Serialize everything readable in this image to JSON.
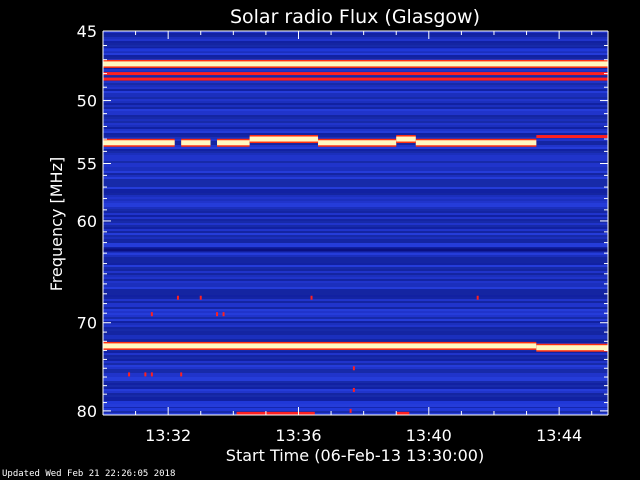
{
  "chart_data": {
    "type": "heatmap",
    "title": "Solar radio Flux (Glasgow)",
    "xlabel": "Start Time (06-Feb-13 13:30:00)",
    "ylabel": "Frequency [MHz]",
    "x_unit": "minutes after 13:30:00",
    "xlim": [
      0,
      15.5
    ],
    "ylim": [
      45,
      80.5
    ],
    "y_scale": "log",
    "x_ticks": [
      {
        "value": 2,
        "label": "13:32"
      },
      {
        "value": 6,
        "label": "13:36"
      },
      {
        "value": 10,
        "label": "13:40"
      },
      {
        "value": 14,
        "label": "13:44"
      }
    ],
    "y_ticks": [
      {
        "value": 45,
        "label": "45"
      },
      {
        "value": 50,
        "label": "50"
      },
      {
        "value": 55,
        "label": "55"
      },
      {
        "value": 60,
        "label": "60"
      },
      {
        "value": 70,
        "label": "70"
      },
      {
        "value": 80,
        "label": "80"
      }
    ],
    "background_color": "#1a2ab0",
    "colors": {
      "low": "#0a1080",
      "mid": "#2038d8",
      "high": "#ff2020",
      "peak": "#fff8c0"
    },
    "bands": [
      {
        "freq": 46.3,
        "intensity": "mid",
        "segments": [
          [
            0,
            15.5
          ]
        ]
      },
      {
        "freq": 47.3,
        "intensity": "peak",
        "segments": [
          [
            0,
            15.5
          ]
        ]
      },
      {
        "freq": 48.0,
        "intensity": "high",
        "segments": [
          [
            0,
            15.5
          ]
        ]
      },
      {
        "freq": 48.4,
        "intensity": "high",
        "segments": [
          [
            0,
            15.5
          ]
        ]
      },
      {
        "freq": 53.3,
        "intensity": "peak",
        "segments": [
          [
            0,
            2.2
          ],
          [
            2.4,
            3.3
          ],
          [
            3.5,
            4.5
          ],
          [
            6.6,
            9.0
          ],
          [
            9.6,
            13.3
          ]
        ]
      },
      {
        "freq": 53.0,
        "intensity": "peak",
        "segments": [
          [
            4.5,
            6.6
          ],
          [
            9.0,
            9.6
          ]
        ]
      },
      {
        "freq": 52.8,
        "intensity": "high",
        "segments": [
          [
            13.3,
            15.5
          ]
        ]
      },
      {
        "freq": 62.7,
        "intensity": "low",
        "segments": [
          [
            0,
            15.5
          ]
        ]
      },
      {
        "freq": 72.5,
        "intensity": "peak",
        "segments": [
          [
            0,
            13.3
          ]
        ]
      },
      {
        "freq": 72.7,
        "intensity": "peak",
        "segments": [
          [
            13.3,
            15.5
          ]
        ]
      },
      {
        "freq": 79.0,
        "intensity": "mid",
        "segments": [
          [
            0,
            15.5
          ]
        ]
      },
      {
        "freq": 79.8,
        "intensity": "mid",
        "segments": [
          [
            0,
            15.5
          ]
        ]
      },
      {
        "freq": 80.3,
        "intensity": "high",
        "segments": [
          [
            4.1,
            6.5
          ],
          [
            9.0,
            9.4
          ]
        ]
      }
    ],
    "spots": [
      {
        "t": 2.3,
        "freq": 67.4
      },
      {
        "t": 3.0,
        "freq": 67.4
      },
      {
        "t": 6.4,
        "freq": 67.4
      },
      {
        "t": 11.5,
        "freq": 67.4
      },
      {
        "t": 1.5,
        "freq": 69.1
      },
      {
        "t": 3.5,
        "freq": 69.1
      },
      {
        "t": 3.7,
        "freq": 69.1
      },
      {
        "t": 0.8,
        "freq": 75.7
      },
      {
        "t": 1.3,
        "freq": 75.7
      },
      {
        "t": 1.5,
        "freq": 75.7
      },
      {
        "t": 2.4,
        "freq": 75.7
      },
      {
        "t": 7.7,
        "freq": 75.0
      },
      {
        "t": 7.7,
        "freq": 77.5
      },
      {
        "t": 7.6,
        "freq": 80.0
      }
    ]
  },
  "footer": {
    "updated": "Updated Wed Feb 21 22:26:05 2018"
  }
}
